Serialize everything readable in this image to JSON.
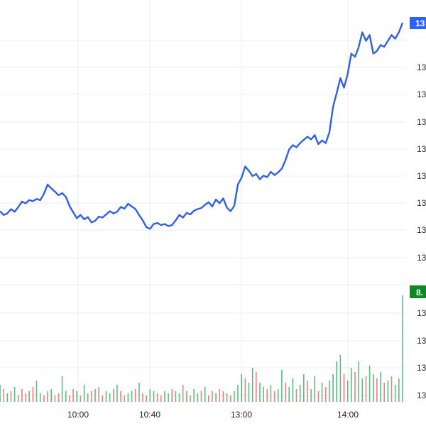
{
  "chart_data": {
    "type": "line",
    "note_axis_labels_clipped": "Right axis labels are truncated at the image edge; only leading digits are visible.",
    "x_ticks": [
      "10:00",
      "10:40",
      "13:00",
      "14:00"
    ],
    "price_axis_labels": [
      "13",
      "13",
      "13",
      "13",
      "13",
      "13",
      "13",
      "13",
      "13"
    ],
    "volume_axis_labels": [
      "13",
      "13",
      "13",
      "13"
    ],
    "price_badge": {
      "text": "13",
      "color": "#2962ff"
    },
    "volume_badge": {
      "text": "8.",
      "color": "#0a8a22"
    },
    "grid": true,
    "series": [
      {
        "kind": "price-line",
        "color": "#2f5ee8",
        "values": [
          0.62,
          0.55,
          0.58,
          0.66,
          0.61,
          0.7,
          0.8,
          0.77,
          0.83,
          0.81,
          0.85,
          0.83,
          0.95,
          1.12,
          1.05,
          0.99,
          0.92,
          0.96,
          0.89,
          0.72,
          0.6,
          0.49,
          0.55,
          0.47,
          0.51,
          0.41,
          0.44,
          0.52,
          0.5,
          0.56,
          0.62,
          0.58,
          0.61,
          0.7,
          0.67,
          0.76,
          0.71,
          0.66,
          0.55,
          0.45,
          0.32,
          0.29,
          0.38,
          0.4,
          0.36,
          0.38,
          0.34,
          0.36,
          0.45,
          0.55,
          0.5,
          0.59,
          0.56,
          0.63,
          0.66,
          0.68,
          0.74,
          0.79,
          0.71,
          0.84,
          0.77,
          0.86,
          0.69,
          0.62,
          0.72,
          1.12,
          1.25,
          1.46,
          1.38,
          1.28,
          1.32,
          1.22,
          1.29,
          1.26,
          1.36,
          1.3,
          1.35,
          1.42,
          1.58,
          1.78,
          1.86,
          1.82,
          1.9,
          1.96,
          2.02,
          1.97,
          2.05,
          1.88,
          1.95,
          1.9,
          2.1,
          2.58,
          2.84,
          3.12,
          2.94,
          3.2,
          3.58,
          3.52,
          3.7,
          3.98,
          3.82,
          3.93,
          3.58,
          3.63,
          3.74,
          3.71,
          3.82,
          3.93,
          3.86,
          3.98,
          4.16
        ]
      },
      {
        "kind": "volume-bars",
        "up_color": "#26a65b",
        "down_color": "#ef5350",
        "values": [
          0.8,
          0.6,
          0.4,
          0.5,
          0.7,
          0.3,
          0.6,
          0.4,
          0.5,
          0.7,
          1.0,
          0.4,
          0.3,
          0.5,
          0.6,
          0.3,
          0.4,
          1.2,
          0.5,
          0.3,
          0.6,
          0.5,
          0.3,
          0.8,
          0.4,
          0.5,
          0.6,
          0.7,
          0.3,
          0.5,
          0.4,
          0.6,
          0.8,
          0.5,
          0.3,
          0.4,
          0.5,
          0.6,
          0.9,
          0.4,
          0.3,
          0.6,
          0.5,
          0.4,
          0.3,
          0.5,
          0.4,
          0.6,
          0.5,
          0.4,
          0.8,
          0.5,
          0.3,
          0.6,
          0.4,
          0.5,
          0.7,
          0.3,
          0.5,
          0.4,
          0.6,
          0.5,
          0.4,
          0.3,
          0.5,
          0.8,
          1.3,
          1.1,
          0.9,
          1.6,
          1.4,
          0.9,
          0.7,
          0.6,
          0.8,
          0.5,
          0.6,
          1.5,
          0.9,
          0.7,
          1.1,
          0.6,
          0.8,
          1.3,
          1.0,
          0.6,
          1.2,
          0.5,
          0.9,
          0.7,
          1.0,
          1.3,
          1.9,
          2.2,
          1.3,
          1.0,
          1.6,
          1.4,
          1.9,
          1.1,
          1.2,
          1.7,
          1.3,
          1.1,
          1.4,
          0.9,
          1.0,
          1.2,
          0.8,
          1.1,
          5.0
        ],
        "directions": [
          1,
          0,
          1,
          0,
          1,
          1,
          0,
          0,
          1,
          0,
          1,
          1,
          0,
          0,
          1,
          0,
          0,
          1,
          1,
          0,
          0,
          1,
          0,
          1,
          1,
          0,
          1,
          0,
          0,
          1,
          1,
          0,
          1,
          0,
          0,
          1,
          1,
          0,
          1,
          0,
          0,
          1,
          1,
          0,
          0,
          1,
          1,
          0,
          1,
          1,
          0,
          1,
          0,
          1,
          1,
          0,
          1,
          0,
          0,
          1,
          0,
          0,
          1,
          0,
          1,
          1,
          1,
          0,
          1,
          1,
          0,
          1,
          1,
          0,
          1,
          0,
          1,
          1,
          0,
          1,
          1,
          0,
          1,
          1,
          0,
          1,
          1,
          0,
          1,
          0,
          1,
          1,
          1,
          1,
          0,
          1,
          1,
          0,
          1,
          1,
          0,
          1,
          1,
          0,
          1,
          0,
          1,
          0,
          1,
          1,
          1
        ]
      }
    ]
  }
}
